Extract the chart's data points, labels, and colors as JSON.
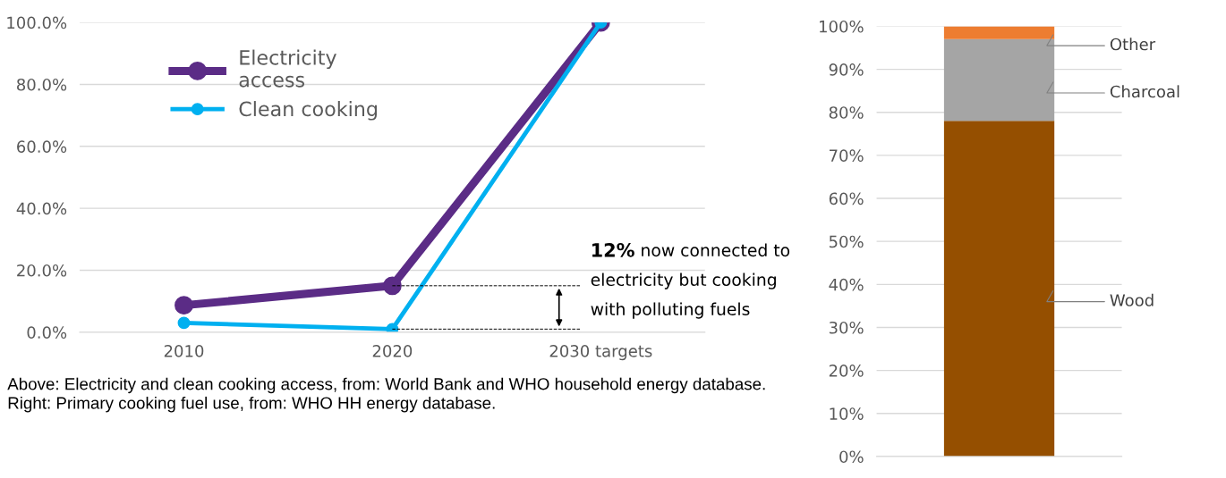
{
  "chart_data": [
    {
      "type": "line",
      "categories": [
        "2010",
        "2020",
        "2030 targets"
      ],
      "series": [
        {
          "name": "Electricity\naccess",
          "color": "#5b2c86",
          "values": [
            8.7,
            15,
            100
          ]
        },
        {
          "name": "Clean cooking",
          "color": "#00b0f0",
          "values": [
            3,
            1,
            100
          ]
        }
      ],
      "ylim": [
        0,
        100
      ],
      "yticks": [
        {
          "value": 0,
          "label": "0.0%"
        },
        {
          "value": 20,
          "label": "20.0%"
        },
        {
          "value": 40,
          "label": "40.0%"
        },
        {
          "value": 60,
          "label": "60.0%"
        },
        {
          "value": 80,
          "label": "80.0%"
        },
        {
          "value": 100,
          "label": "100.0%"
        }
      ],
      "grid": "y",
      "legend": "top left",
      "marker": "circle",
      "annotations": [
        {
          "text": "12% now connected to\nelectricity but cooking\nwith polluting fuels",
          "x": "2020",
          "y": 15
        },
        "Above: Electricity and clean cooking access, from: World Bank and WHO household energy database.",
        "Right: Primary cooking fuel use, from: WHO HH energy database."
      ]
    },
    {
      "type": "bar",
      "stacked": true,
      "categories": [
        null
      ],
      "series": [
        {
          "name": "Wood",
          "color": "#954f00",
          "values": [
            78
          ]
        },
        {
          "name": "Charcoal",
          "color": "#a5a5a5",
          "values": [
            19
          ]
        },
        {
          "name": "Other",
          "color": "#ed7d31",
          "values": [
            3
          ]
        }
      ],
      "ylim": [
        0,
        100
      ],
      "yticks": [
        {
          "value": 0,
          "label": "0%"
        },
        {
          "value": 10,
          "label": "10%"
        },
        {
          "value": 20,
          "label": "20%"
        },
        {
          "value": 30,
          "label": "30%"
        },
        {
          "value": 40,
          "label": "40%"
        },
        {
          "value": 50,
          "label": "50%"
        },
        {
          "value": 60,
          "label": "60%"
        },
        {
          "value": 70,
          "label": "70%"
        },
        {
          "value": 80,
          "label": "80%"
        },
        {
          "value": 90,
          "label": "90%"
        },
        {
          "value": 100,
          "label": "100%"
        }
      ],
      "grid": "y",
      "legend": false
    }
  ]
}
